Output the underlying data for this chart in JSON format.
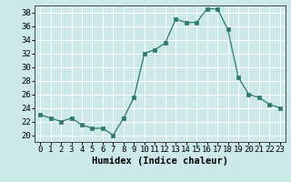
{
  "x": [
    0,
    1,
    2,
    3,
    4,
    5,
    6,
    7,
    8,
    9,
    10,
    11,
    12,
    13,
    14,
    15,
    16,
    17,
    18,
    19,
    20,
    21,
    22,
    23
  ],
  "y": [
    23,
    22.5,
    22,
    22.5,
    21.5,
    21,
    21,
    20,
    22.5,
    25.5,
    32,
    32.5,
    33.5,
    37,
    36.5,
    36.5,
    38.5,
    38.5,
    35.5,
    28.5,
    26,
    25.5,
    24.5,
    24
  ],
  "xlabel": "Humidex (Indice chaleur)",
  "ylabel": "",
  "ylim": [
    19,
    39
  ],
  "xlim": [
    -0.5,
    23.5
  ],
  "yticks": [
    20,
    22,
    24,
    26,
    28,
    30,
    32,
    34,
    36,
    38
  ],
  "xticks": [
    0,
    1,
    2,
    3,
    4,
    5,
    6,
    7,
    8,
    9,
    10,
    11,
    12,
    13,
    14,
    15,
    16,
    17,
    18,
    19,
    20,
    21,
    22,
    23
  ],
  "line_color": "#2d7a68",
  "marker_color": "#2d7a68",
  "bg_color": "#cce8e8",
  "grid_color": "#ffffff",
  "xlabel_fontsize": 7.5,
  "tick_fontsize": 6.5
}
